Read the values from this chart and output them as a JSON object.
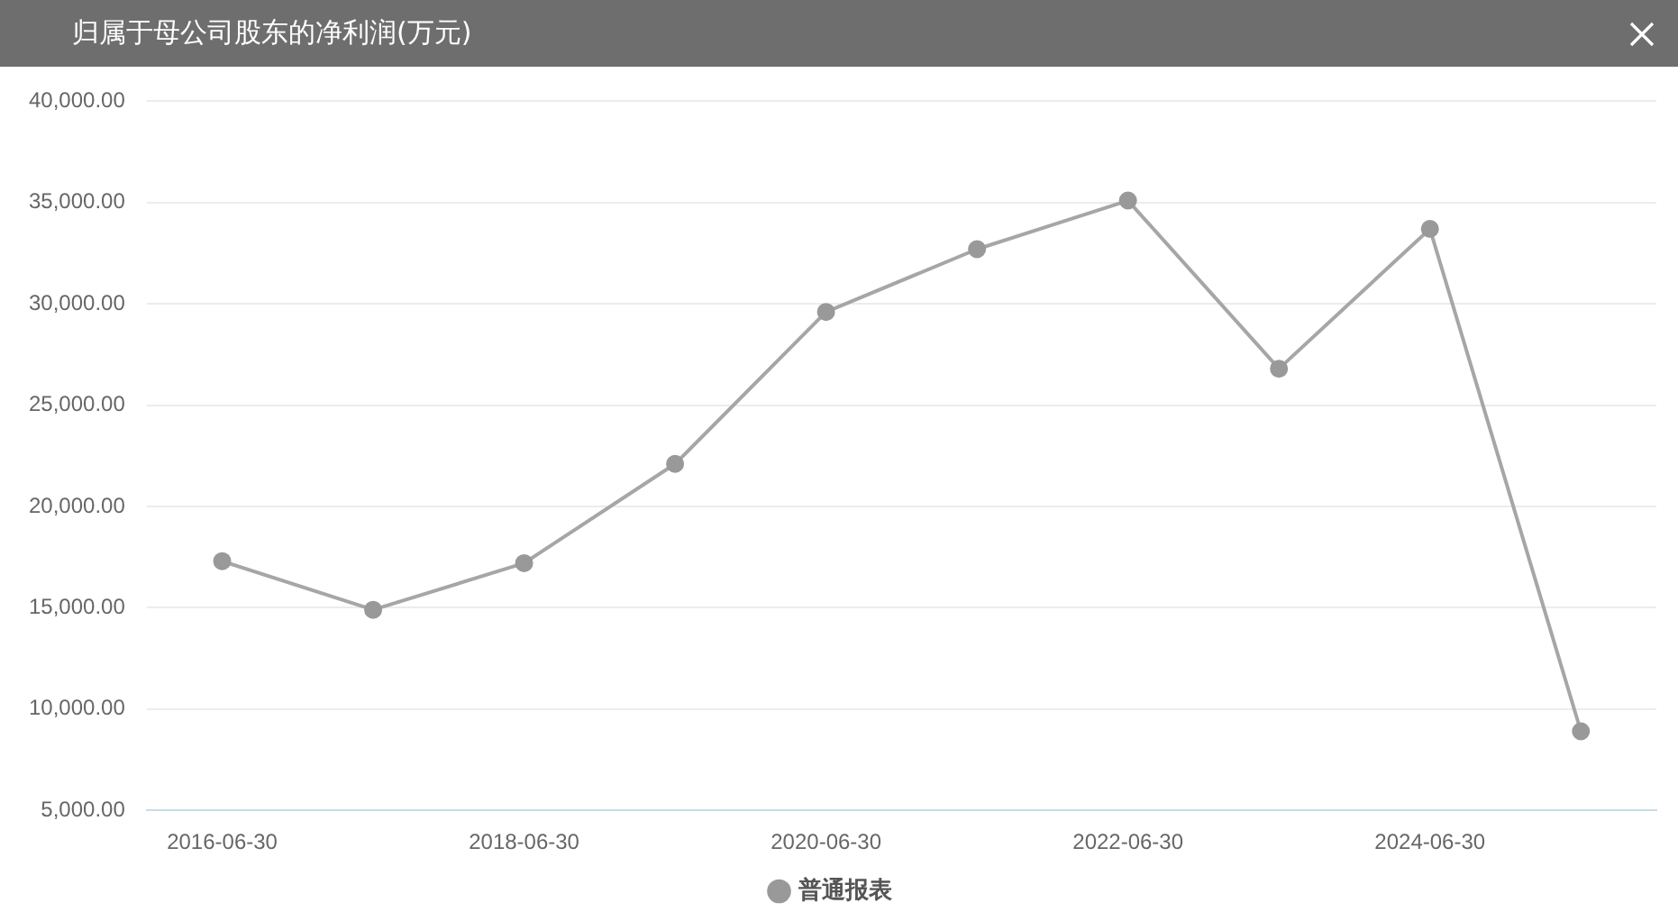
{
  "chart_data": {
    "type": "line",
    "title": "归属于母公司股东的净利润(万元)",
    "categories": [
      "2016-06-30",
      null,
      "2018-06-30",
      null,
      "2020-06-30",
      null,
      "2022-06-30",
      null,
      "2024-06-30",
      null
    ],
    "series": [
      {
        "name": "普通报表",
        "color": "#a6a6a6",
        "values": [
          17300,
          14900,
          17200,
          22100,
          29600,
          32700,
          35100,
          26800,
          33700,
          8900
        ]
      }
    ],
    "ylim": [
      5000,
      40000
    ],
    "yticks": [
      {
        "value": 5000,
        "label": "5,000.00"
      },
      {
        "value": 10000,
        "label": "10,000.00"
      },
      {
        "value": 15000,
        "label": "15,000.00"
      },
      {
        "value": 20000,
        "label": "20,000.00"
      },
      {
        "value": 25000,
        "label": "25,000.00"
      },
      {
        "value": 30000,
        "label": "30,000.00"
      },
      {
        "value": 35000,
        "label": "35,000.00"
      },
      {
        "value": 40000,
        "label": "40,000.00"
      }
    ],
    "grid": "y",
    "legend": "bottom",
    "marker": "circle",
    "line_style": "solid"
  }
}
